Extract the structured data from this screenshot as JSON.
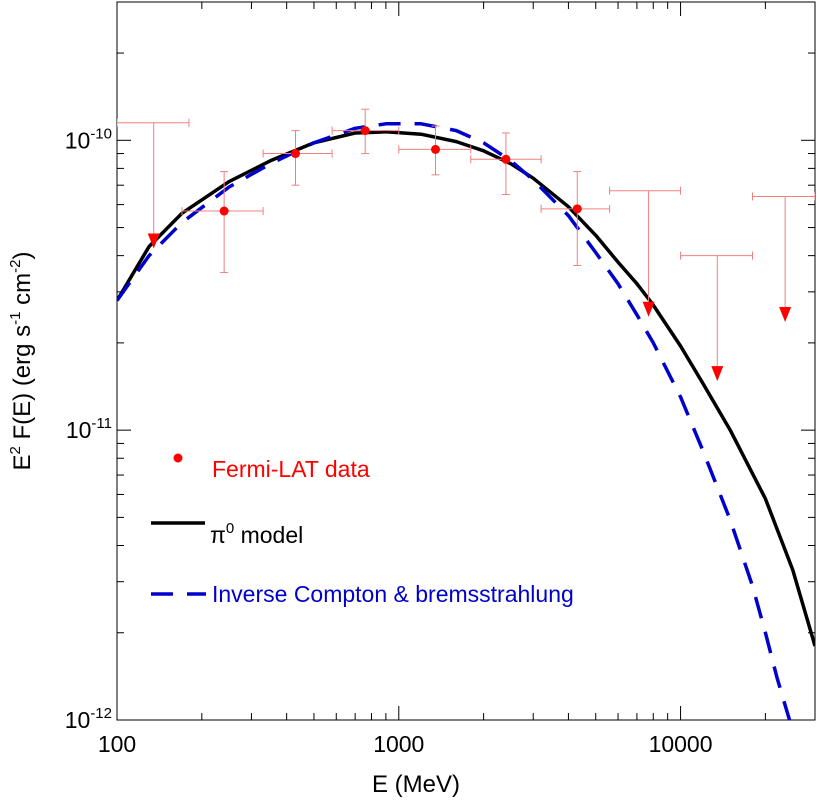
{
  "chart_data": {
    "type": "line",
    "title": "",
    "xlabel": "E (MeV)",
    "ylabel": {
      "main": "E",
      "sup1": "2",
      "mid": " F(E) (erg s",
      "sup2": "-1",
      "mid2": " cm",
      "sup3": "-2",
      "end": ")"
    },
    "x_scale": "log",
    "y_scale": "log",
    "xlim": [
      100,
      30000
    ],
    "ylim": [
      1e-12,
      3e-10
    ],
    "x_ticks": [
      {
        "value": 100,
        "label": "100"
      },
      {
        "value": 1000,
        "label": "1000"
      },
      {
        "value": 10000,
        "label": "10000"
      }
    ],
    "y_ticks": [
      {
        "value": 1e-12,
        "base": "10",
        "exp": "-12"
      },
      {
        "value": 1e-11,
        "base": "10",
        "exp": "-11"
      },
      {
        "value": 1e-10,
        "base": "10",
        "exp": "-10"
      }
    ],
    "colors": {
      "data": "#ff0000",
      "error_bars": "#f08080",
      "pi0": "#000000",
      "ic": "#0000cc"
    },
    "legend": {
      "placement": "lower-left",
      "entries": [
        {
          "key": "data",
          "label": "Fermi-LAT data",
          "color": "#ff0000"
        },
        {
          "key": "pi0",
          "label_main": "π",
          "label_sup": "0",
          "label_rest": " model",
          "color": "#000000"
        },
        {
          "key": "ic",
          "label": "Inverse Compton & bremsstrahlung",
          "color": "#0000cc"
        }
      ]
    },
    "data_points": [
      {
        "x": 240,
        "y": 5.7e-11,
        "x_lo": 170,
        "x_hi": 330,
        "y_lo": 3.5e-11,
        "y_hi": 7.8e-11
      },
      {
        "x": 430,
        "y": 9e-11,
        "x_lo": 330,
        "x_hi": 580,
        "y_lo": 7e-11,
        "y_hi": 1.08e-10
      },
      {
        "x": 760,
        "y": 1.08e-10,
        "x_lo": 580,
        "x_hi": 1000,
        "y_lo": 9e-11,
        "y_hi": 1.28e-10
      },
      {
        "x": 1350,
        "y": 9.3e-11,
        "x_lo": 1000,
        "x_hi": 1800,
        "y_lo": 7.6e-11,
        "y_hi": 1.12e-10
      },
      {
        "x": 2400,
        "y": 8.6e-11,
        "x_lo": 1800,
        "x_hi": 3200,
        "y_lo": 6.5e-11,
        "y_hi": 1.06e-10
      },
      {
        "x": 4300,
        "y": 5.8e-11,
        "x_lo": 3200,
        "x_hi": 5600,
        "y_lo": 3.7e-11,
        "y_hi": 7.8e-11
      }
    ],
    "upper_limits": [
      {
        "x": 135,
        "y": 1.15e-10,
        "x_lo": 100,
        "x_hi": 180,
        "arrow_y": 4.3e-11
      },
      {
        "x": 7700,
        "y": 6.7e-11,
        "x_lo": 5600,
        "x_hi": 10000,
        "arrow_y": 2.5e-11
      },
      {
        "x": 13500,
        "y": 4e-11,
        "x_lo": 10000,
        "x_hi": 18000,
        "arrow_y": 1.5e-11
      },
      {
        "x": 23500,
        "y": 6.4e-11,
        "x_lo": 18000,
        "x_hi": 30000,
        "arrow_y": 2.4e-11
      }
    ],
    "series": [
      {
        "key": "pi0",
        "x": [
          100,
          130,
          170,
          250,
          350,
          500,
          700,
          900,
          1200,
          1600,
          2000,
          2500,
          3000,
          4000,
          5000,
          6000,
          7000,
          8000,
          10000,
          12000,
          15000,
          20000,
          25000,
          30000
        ],
        "y": [
          2.8e-11,
          4.3e-11,
          5.6e-11,
          7.2e-11,
          8.5e-11,
          9.8e-11,
          1.06e-10,
          1.07e-10,
          1.05e-10,
          9.9e-11,
          9.2e-11,
          8.3e-11,
          7.4e-11,
          5.9e-11,
          4.7e-11,
          3.8e-11,
          3.2e-11,
          2.7e-11,
          1.95e-11,
          1.45e-11,
          1e-11,
          5.8e-12,
          3.3e-12,
          1.8e-12
        ]
      },
      {
        "key": "ic",
        "x": [
          100,
          130,
          170,
          250,
          350,
          500,
          700,
          900,
          1200,
          1600,
          2000,
          2500,
          3000,
          4000,
          5000,
          6000,
          7000,
          8000,
          10000,
          12000,
          15000,
          18000,
          20000,
          22000,
          24000,
          25000
        ],
        "y": [
          2.8e-11,
          4e-11,
          5.2e-11,
          6.9e-11,
          8.3e-11,
          9.8e-11,
          1.1e-10,
          1.14e-10,
          1.14e-10,
          1.08e-10,
          9.8e-11,
          8.5e-11,
          7.3e-11,
          5.5e-11,
          4.1e-11,
          3.2e-11,
          2.5e-11,
          2e-11,
          1.3e-11,
          8.5e-12,
          4.9e-12,
          2.9e-12,
          2e-12,
          1.4e-12,
          1.05e-12,
          9.2e-13
        ]
      }
    ]
  }
}
